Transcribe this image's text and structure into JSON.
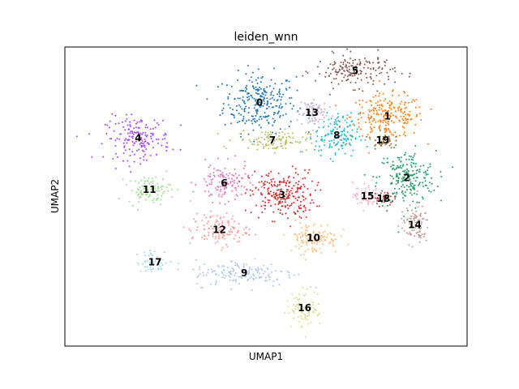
{
  "chart_data": {
    "type": "scatter",
    "title": "leiden_wnn",
    "xlabel": "UMAP1",
    "ylabel": "UMAP2",
    "xlim": [
      0,
      100
    ],
    "ylim": [
      0,
      100
    ],
    "grid": false,
    "ticks": false,
    "legend": "on-data",
    "clusters": [
      {
        "label": "0",
        "color": "#1f77b4",
        "x": 48.4,
        "y": 81.4
      },
      {
        "label": "1",
        "color": "#ff7f0e",
        "x": 80.2,
        "y": 76.8
      },
      {
        "label": "2",
        "color": "#279e68",
        "x": 85.0,
        "y": 56.2
      },
      {
        "label": "3",
        "color": "#d62728",
        "x": 54.0,
        "y": 50.6
      },
      {
        "label": "4",
        "color": "#aa40fc",
        "x": 18.2,
        "y": 69.5
      },
      {
        "label": "5",
        "color": "#8c564b",
        "x": 72.2,
        "y": 92.0
      },
      {
        "label": "6",
        "color": "#e377c2",
        "x": 39.6,
        "y": 54.5
      },
      {
        "label": "7",
        "color": "#b5bd61",
        "x": 51.6,
        "y": 68.8
      },
      {
        "label": "8",
        "color": "#17becf",
        "x": 67.6,
        "y": 70.4
      },
      {
        "label": "9",
        "color": "#aec7e8",
        "x": 44.6,
        "y": 24.4
      },
      {
        "label": "10",
        "color": "#ffbb78",
        "x": 61.8,
        "y": 36.2
      },
      {
        "label": "11",
        "color": "#98df8a",
        "x": 21.0,
        "y": 52.3
      },
      {
        "label": "12",
        "color": "#ff9896",
        "x": 38.4,
        "y": 38.9
      },
      {
        "label": "13",
        "color": "#c5b0d5",
        "x": 61.4,
        "y": 78.0
      },
      {
        "label": "14",
        "color": "#c49c94",
        "x": 87.0,
        "y": 40.5
      },
      {
        "label": "15",
        "color": "#f7b6d2",
        "x": 75.2,
        "y": 50.2
      },
      {
        "label": "16",
        "color": "#dbdb8d",
        "x": 59.6,
        "y": 12.7
      },
      {
        "label": "17",
        "color": "#9edae5",
        "x": 22.4,
        "y": 28.1
      },
      {
        "label": "18",
        "color": "#ad494a",
        "x": 79.2,
        "y": 49.3
      },
      {
        "label": "19",
        "color": "#8c6d31",
        "x": 79.0,
        "y": 68.8
      }
    ]
  }
}
